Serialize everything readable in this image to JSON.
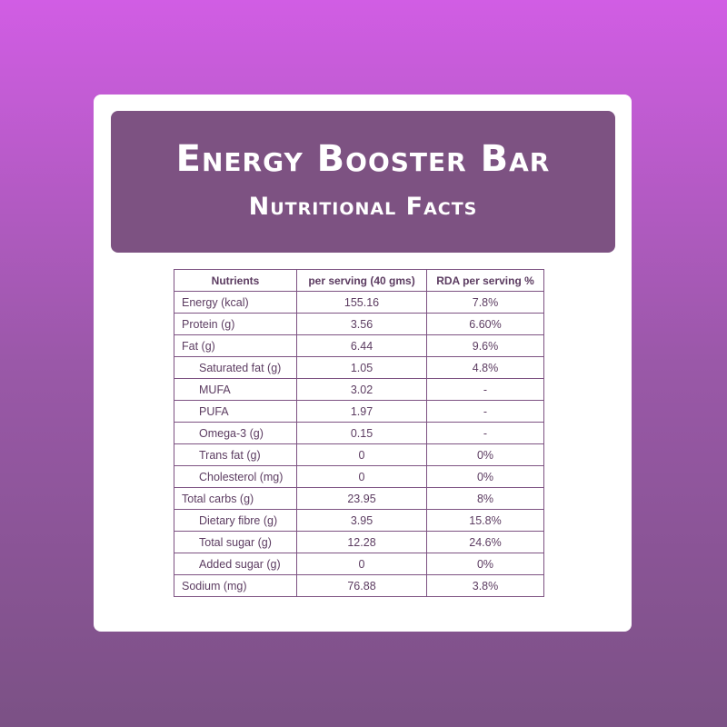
{
  "header": {
    "title": "Energy Booster Bar",
    "subtitle": "Nutritional Facts"
  },
  "table": {
    "columns": [
      "Nutrients",
      "per serving (40 gms)",
      "RDA per serving %"
    ],
    "rows": [
      {
        "nutrient": "Energy (kcal)",
        "per_serving": "155.16",
        "rda": "7.8%",
        "indent": false
      },
      {
        "nutrient": "Protein (g)",
        "per_serving": "3.56",
        "rda": "6.60%",
        "indent": false
      },
      {
        "nutrient": "Fat (g)",
        "per_serving": "6.44",
        "rda": "9.6%",
        "indent": false
      },
      {
        "nutrient": "Saturated fat (g)",
        "per_serving": "1.05",
        "rda": "4.8%",
        "indent": true
      },
      {
        "nutrient": "MUFA",
        "per_serving": "3.02",
        "rda": "-",
        "indent": true
      },
      {
        "nutrient": "PUFA",
        "per_serving": "1.97",
        "rda": "-",
        "indent": true
      },
      {
        "nutrient": "Omega-3 (g)",
        "per_serving": "0.15",
        "rda": "-",
        "indent": true
      },
      {
        "nutrient": "Trans fat (g)",
        "per_serving": "0",
        "rda": "0%",
        "indent": true
      },
      {
        "nutrient": "Cholesterol (mg)",
        "per_serving": "0",
        "rda": "0%",
        "indent": true
      },
      {
        "nutrient": "Total carbs (g)",
        "per_serving": "23.95",
        "rda": "8%",
        "indent": false
      },
      {
        "nutrient": "Dietary fibre (g)",
        "per_serving": "3.95",
        "rda": "15.8%",
        "indent": true
      },
      {
        "nutrient": "Total sugar (g)",
        "per_serving": "12.28",
        "rda": "24.6%",
        "indent": true
      },
      {
        "nutrient": "Added sugar (g)",
        "per_serving": "0",
        "rda": "0%",
        "indent": true
      },
      {
        "nutrient": "Sodium (mg)",
        "per_serving": "76.88",
        "rda": "3.8%",
        "indent": false
      }
    ]
  },
  "colors": {
    "header_bg": "#7d5282",
    "text": "#5c3c61",
    "bg_top": "#d15de4",
    "bg_bottom": "#7b5185"
  }
}
